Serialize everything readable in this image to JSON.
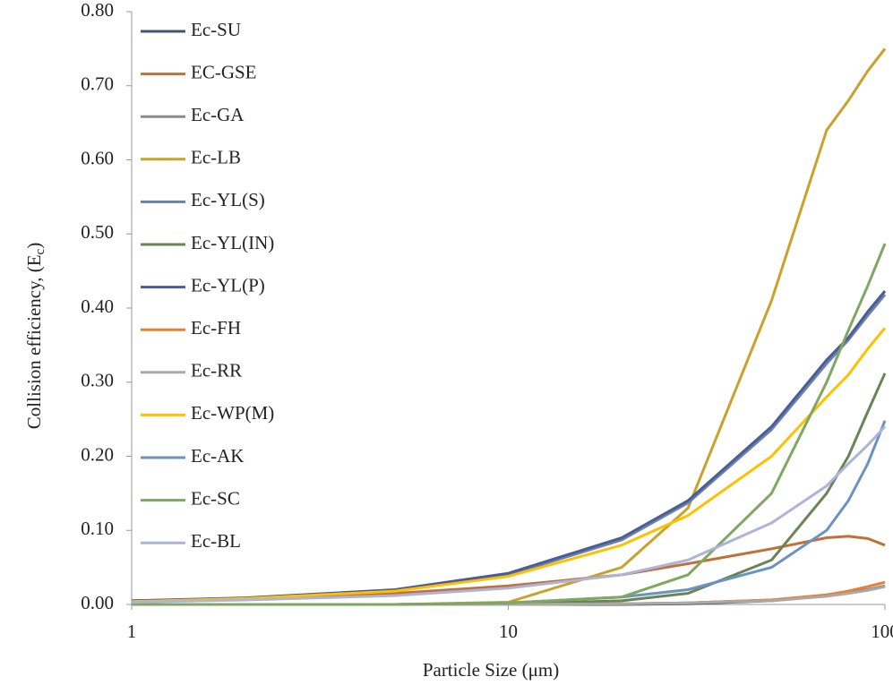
{
  "chart_data": {
    "type": "line",
    "x_label": "Particle Size (μm)",
    "y_label": [
      "Collision efficiency, (E",
      "c",
      ")"
    ],
    "x": [
      1,
      2,
      5,
      10,
      20,
      30,
      50,
      70,
      80,
      90,
      100
    ],
    "xlim": [
      1,
      100
    ],
    "xticks": [
      1,
      10,
      100
    ],
    "x_log": true,
    "ylim": [
      0,
      0.8
    ],
    "yticks": [
      {
        "value": 0,
        "label": "0.00"
      },
      {
        "value": 0.1,
        "label": "0.10"
      },
      {
        "value": 0.2,
        "label": "0.20"
      },
      {
        "value": 0.3,
        "label": "0.30"
      },
      {
        "value": 0.4,
        "label": "0.40"
      },
      {
        "value": 0.5,
        "label": "0.50"
      },
      {
        "value": 0.6,
        "label": "0.60"
      },
      {
        "value": 0.7,
        "label": "0.70"
      },
      {
        "value": 0.8,
        "label": "0.80"
      }
    ],
    "grid": false,
    "legend": "top-left",
    "series": [
      {
        "name": "Ec-SU",
        "color": "#44546a",
        "values": [
          0,
          0,
          0,
          0,
          0,
          0.001,
          0.005,
          0.012,
          0.016,
          0.02,
          0.025
        ]
      },
      {
        "name": "EC-GSE",
        "color": "#c0703a",
        "values": [
          0.005,
          0.008,
          0.015,
          0.025,
          0.04,
          0.055,
          0.075,
          0.09,
          0.092,
          0.089,
          0.08
        ]
      },
      {
        "name": "Ec-GA",
        "color": "#8c8c8c",
        "values": [
          0,
          0,
          0,
          0,
          0.001,
          0.002,
          0.006,
          0.012,
          0.016,
          0.02,
          0.025
        ]
      },
      {
        "name": "Ec-LB",
        "color": "#c9a227",
        "values": [
          0,
          0,
          0,
          0.003,
          0.05,
          0.13,
          0.41,
          0.64,
          0.68,
          0.72,
          0.75
        ]
      },
      {
        "name": "Ec-YL(S)",
        "color": "#6d82a8",
        "values": [
          0.004,
          0.008,
          0.018,
          0.04,
          0.087,
          0.137,
          0.236,
          0.325,
          0.357,
          0.39,
          0.418
        ]
      },
      {
        "name": "Ec-YL(IN)",
        "color": "#6b8455",
        "values": [
          0,
          0,
          0,
          0.001,
          0.005,
          0.015,
          0.06,
          0.15,
          0.2,
          0.26,
          0.312
        ]
      },
      {
        "name": "Ec-YL(P)",
        "color": "#4a5d99",
        "values": [
          0.005,
          0.009,
          0.02,
          0.042,
          0.09,
          0.14,
          0.24,
          0.33,
          0.36,
          0.395,
          0.423
        ]
      },
      {
        "name": "Ec-FH",
        "color": "#ed7d31",
        "values": [
          0,
          0,
          0,
          0,
          0.001,
          0.002,
          0.006,
          0.013,
          0.018,
          0.024,
          0.03
        ]
      },
      {
        "name": "Ec-RR",
        "color": "#a9a9a9",
        "values": [
          0,
          0,
          0,
          0,
          0.001,
          0.002,
          0.005,
          0.011,
          0.015,
          0.019,
          0.024
        ]
      },
      {
        "name": "Ec-WP(M)",
        "color": "#ffc000",
        "values": [
          0.004,
          0.008,
          0.018,
          0.038,
          0.08,
          0.12,
          0.2,
          0.28,
          0.31,
          0.345,
          0.373
        ]
      },
      {
        "name": "Ec-AK",
        "color": "#6a93c0",
        "values": [
          0,
          0,
          0,
          0.002,
          0.01,
          0.02,
          0.05,
          0.1,
          0.14,
          0.19,
          0.248
        ]
      },
      {
        "name": "Ec-SC",
        "color": "#7fa760",
        "values": [
          0,
          0,
          0,
          0.002,
          0.01,
          0.04,
          0.15,
          0.3,
          0.37,
          0.43,
          0.487
        ]
      },
      {
        "name": "Ec-BL",
        "color": "#aeb3d9",
        "values": [
          0.003,
          0.006,
          0.012,
          0.022,
          0.04,
          0.06,
          0.11,
          0.16,
          0.19,
          0.215,
          0.24
        ]
      }
    ]
  }
}
